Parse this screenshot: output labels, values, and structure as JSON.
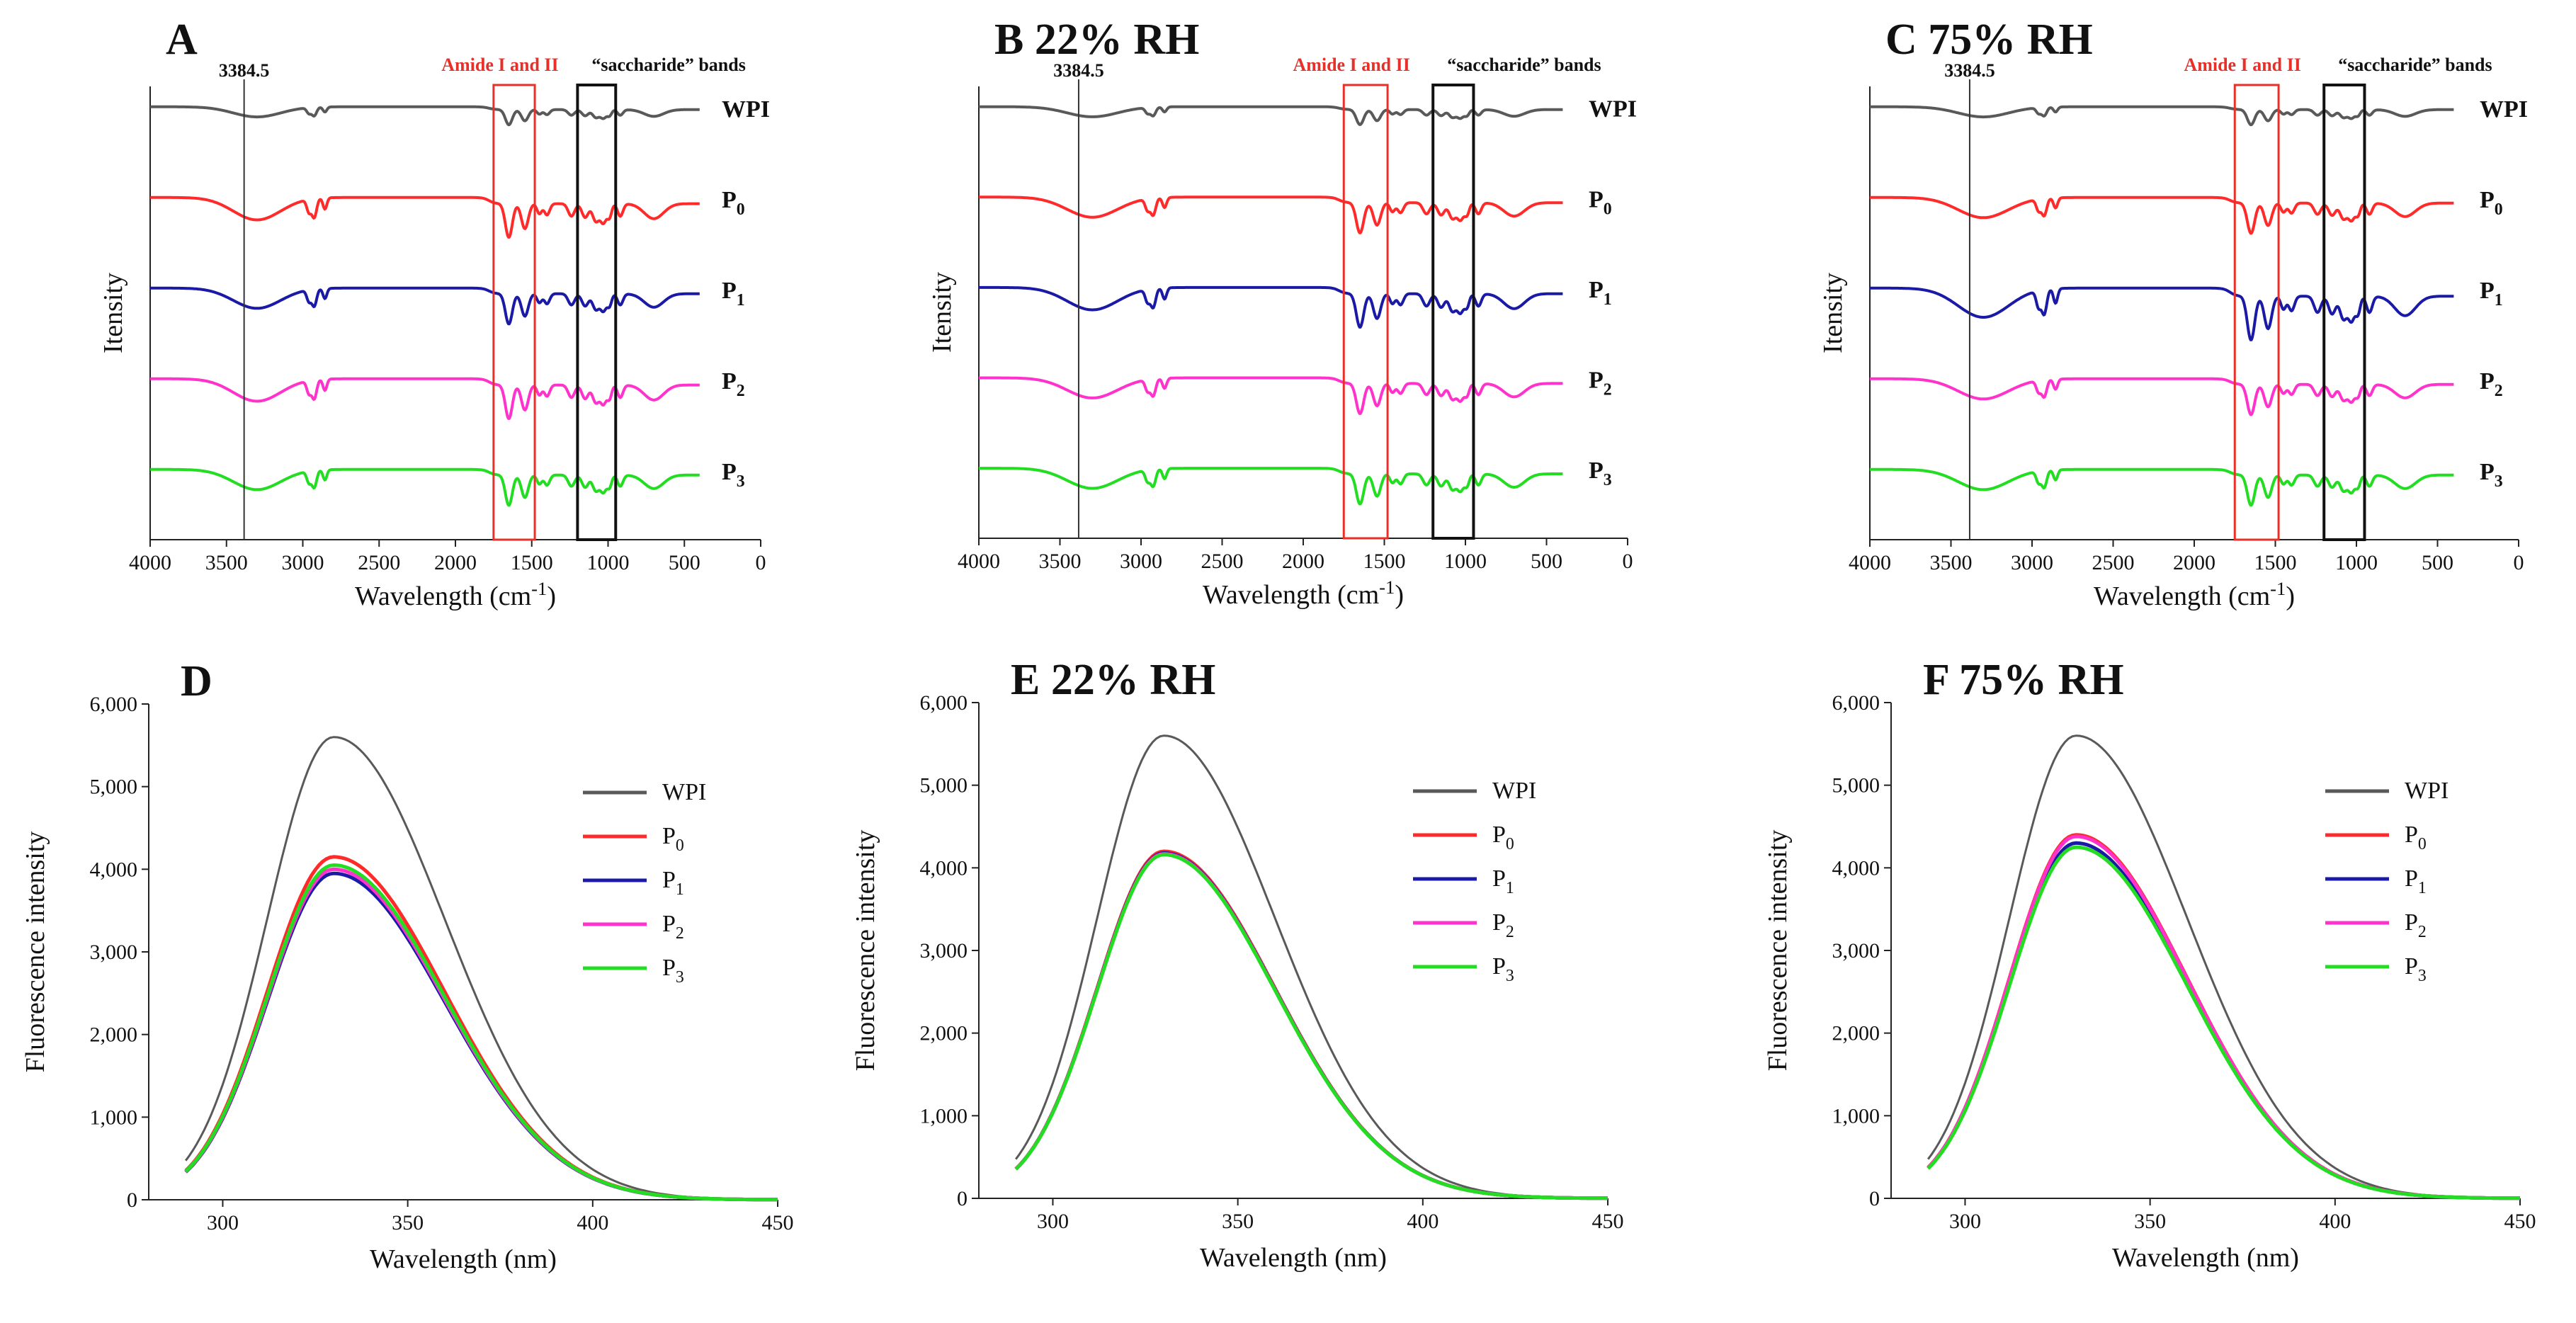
{
  "figure": {
    "background": "#ffffff"
  },
  "colors": {
    "WPI": "#595959",
    "P0": "#ff2a2a",
    "P1": "#1a1aa6",
    "P2": "#ff33cc",
    "P3": "#22dd22",
    "amide_box": "#e8302a",
    "saccharide_box": "#111111"
  },
  "chart_data": [
    {
      "id": "A",
      "type": "line",
      "panel_title": "A",
      "xlabel": "Wavelength (cm",
      "xlabel_sup": "-1",
      "xlabel_end": ")",
      "ylabel": "Itensity",
      "xlim": [
        4000,
        0
      ],
      "ylim": [
        0,
        10
      ],
      "grid": false,
      "xticks": [
        "4000",
        "3500",
        "3000",
        "2500",
        "2000",
        "1500",
        "1000",
        "500",
        "0"
      ],
      "annotations": {
        "vline_x": 3384.5,
        "vline_label": "3384.5",
        "amide_label": "Amide I and II",
        "amide_range": [
          1750,
          1480
        ],
        "saccharide_label": "“saccharide” bands",
        "saccharide_range": [
          1200,
          950
        ]
      },
      "series": [
        {
          "name": "WPI",
          "label": "WPI",
          "sub": "",
          "color_key": "WPI",
          "offset": 9.0,
          "scale": 0.45
        },
        {
          "name": "P0",
          "label": "P",
          "sub": "0",
          "color_key": "P0",
          "offset": 7.0,
          "scale": 1.0
        },
        {
          "name": "P1",
          "label": "P",
          "sub": "1",
          "color_key": "P1",
          "offset": 5.0,
          "scale": 0.9
        },
        {
          "name": "P2",
          "label": "P",
          "sub": "2",
          "color_key": "P2",
          "offset": 3.0,
          "scale": 1.0
        },
        {
          "name": "P3",
          "label": "P",
          "sub": "3",
          "color_key": "P3",
          "offset": 1.0,
          "scale": 0.9
        }
      ]
    },
    {
      "id": "B",
      "type": "line",
      "panel_title": "B 22% RH",
      "xlabel": "Wavelength (cm",
      "xlabel_sup": "-1",
      "xlabel_end": ")",
      "ylabel": "Itensity",
      "xlim": [
        4000,
        0
      ],
      "ylim": [
        0,
        10
      ],
      "grid": false,
      "xticks": [
        "4000",
        "3500",
        "3000",
        "2500",
        "2000",
        "1500",
        "1000",
        "500",
        "0"
      ],
      "annotations": {
        "vline_x": 3384.5,
        "vline_label": "3384.5",
        "amide_label": "Amide I and II",
        "amide_range": [
          1750,
          1480
        ],
        "saccharide_label": "“saccharide” bands",
        "saccharide_range": [
          1200,
          950
        ]
      },
      "series": [
        {
          "name": "WPI",
          "label": "WPI",
          "sub": "",
          "color_key": "WPI",
          "offset": 9.0,
          "scale": 0.45
        },
        {
          "name": "P0",
          "label": "P",
          "sub": "0",
          "color_key": "P0",
          "offset": 7.0,
          "scale": 0.9
        },
        {
          "name": "P1",
          "label": "P",
          "sub": "1",
          "color_key": "P1",
          "offset": 5.0,
          "scale": 1.0
        },
        {
          "name": "P2",
          "label": "P",
          "sub": "2",
          "color_key": "P2",
          "offset": 3.0,
          "scale": 0.9
        },
        {
          "name": "P3",
          "label": "P",
          "sub": "3",
          "color_key": "P3",
          "offset": 1.0,
          "scale": 0.9
        }
      ]
    },
    {
      "id": "C",
      "type": "line",
      "panel_title": "C 75% RH",
      "xlabel": "Wavelength (cm",
      "xlabel_sup": "-1",
      "xlabel_end": ")",
      "ylabel": "Itensity",
      "xlim": [
        4000,
        0
      ],
      "ylim": [
        0,
        10
      ],
      "grid": false,
      "xticks": [
        "4000",
        "3500",
        "3000",
        "2500",
        "2000",
        "1500",
        "1000",
        "500",
        "0"
      ],
      "annotations": {
        "vline_x": 3384.5,
        "vline_label": "3384.5",
        "amide_label": "Amide I and II",
        "amide_range": [
          1750,
          1480
        ],
        "saccharide_label": "“saccharide” bands",
        "saccharide_range": [
          1200,
          950
        ]
      },
      "series": [
        {
          "name": "WPI",
          "label": "WPI",
          "sub": "",
          "color_key": "WPI",
          "offset": 9.0,
          "scale": 0.45
        },
        {
          "name": "P0",
          "label": "P",
          "sub": "0",
          "color_key": "P0",
          "offset": 7.0,
          "scale": 0.9
        },
        {
          "name": "P1",
          "label": "P",
          "sub": "1",
          "color_key": "P1",
          "offset": 5.0,
          "scale": 1.3
        },
        {
          "name": "P2",
          "label": "P",
          "sub": "2",
          "color_key": "P2",
          "offset": 3.0,
          "scale": 0.9
        },
        {
          "name": "P3",
          "label": "P",
          "sub": "3",
          "color_key": "P3",
          "offset": 1.0,
          "scale": 0.9
        }
      ]
    },
    {
      "id": "D",
      "type": "line",
      "panel_title": "D",
      "xlabel": "Wavelength (nm)",
      "ylabel": "Fluorescence intensity",
      "xlim": [
        280,
        450
      ],
      "ylim": [
        0,
        6000
      ],
      "grid": false,
      "xticks": [
        300,
        350,
        400,
        450
      ],
      "yticks": [
        0,
        1000,
        2000,
        3000,
        4000,
        5000,
        6000
      ],
      "ytick_labels": [
        "0",
        "1,000",
        "2,000",
        "3,000",
        "4,000",
        "5,000",
        "6,000"
      ],
      "peak_x": 330,
      "series": [
        {
          "name": "WPI",
          "label": "WPI",
          "sub": "",
          "color_key": "WPI",
          "peak": 5600
        },
        {
          "name": "P0",
          "label": "P",
          "sub": "0",
          "color_key": "P0",
          "peak": 4150
        },
        {
          "name": "P1",
          "label": "P",
          "sub": "1",
          "color_key": "P1",
          "peak": 3950
        },
        {
          "name": "P2",
          "label": "P",
          "sub": "2",
          "color_key": "P2",
          "peak": 4000
        },
        {
          "name": "P3",
          "label": "P",
          "sub": "3",
          "color_key": "P3",
          "peak": 4050
        }
      ]
    },
    {
      "id": "E",
      "type": "line",
      "panel_title": "E 22% RH",
      "xlabel": "Wavelength (nm)",
      "ylabel": "Fluorescence intensity",
      "xlim": [
        280,
        450
      ],
      "ylim": [
        0,
        6000
      ],
      "grid": false,
      "xticks": [
        300,
        350,
        400,
        450
      ],
      "yticks": [
        0,
        1000,
        2000,
        3000,
        4000,
        5000,
        6000
      ],
      "ytick_labels": [
        "0",
        "1,000",
        "2,000",
        "3,000",
        "4,000",
        "5,000",
        "6,000"
      ],
      "peak_x": 330,
      "series": [
        {
          "name": "WPI",
          "label": "WPI",
          "sub": "",
          "color_key": "WPI",
          "peak": 5600
        },
        {
          "name": "P0",
          "label": "P",
          "sub": "0",
          "color_key": "P0",
          "peak": 4200
        },
        {
          "name": "P1",
          "label": "P",
          "sub": "1",
          "color_key": "P1",
          "peak": 4180
        },
        {
          "name": "P2",
          "label": "P",
          "sub": "2",
          "color_key": "P2",
          "peak": 4170
        },
        {
          "name": "P3",
          "label": "P",
          "sub": "3",
          "color_key": "P3",
          "peak": 4160
        }
      ]
    },
    {
      "id": "F",
      "type": "line",
      "panel_title": "F 75% RH",
      "xlabel": "Wavelength (nm)",
      "ylabel": "Fluorescence intensity",
      "xlim": [
        280,
        450
      ],
      "ylim": [
        0,
        6000
      ],
      "grid": false,
      "xticks": [
        300,
        350,
        400,
        450
      ],
      "yticks": [
        0,
        1000,
        2000,
        3000,
        4000,
        5000,
        6000
      ],
      "ytick_labels": [
        "0",
        "1,000",
        "2,000",
        "3,000",
        "4,000",
        "5,000",
        "6,000"
      ],
      "peak_x": 330,
      "series": [
        {
          "name": "WPI",
          "label": "WPI",
          "sub": "",
          "color_key": "WPI",
          "peak": 5600
        },
        {
          "name": "P0",
          "label": "P",
          "sub": "0",
          "color_key": "P0",
          "peak": 4400
        },
        {
          "name": "P1",
          "label": "P",
          "sub": "1",
          "color_key": "P1",
          "peak": 4300
        },
        {
          "name": "P2",
          "label": "P",
          "sub": "2",
          "color_key": "P2",
          "peak": 4380
        },
        {
          "name": "P3",
          "label": "P",
          "sub": "3",
          "color_key": "P3",
          "peak": 4250
        }
      ]
    }
  ]
}
